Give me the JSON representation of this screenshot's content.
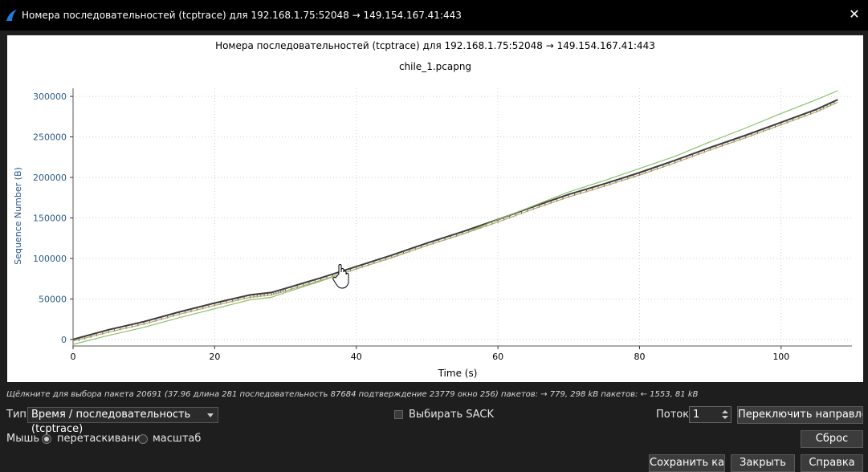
{
  "window": {
    "title": "Номера последовательностей (tcptrace) для 192.168.1.75:52048 → 149.154.167.41:443"
  },
  "chart_data": {
    "type": "line",
    "title": "Номера последовательностей (tcptrace) для 192.168.1.75:52048 → 149.154.167.41:443",
    "subtitle": "chile_1.pcapng",
    "xlabel": "Time (s)",
    "ylabel": "Sequence Number (B)",
    "xlim": [
      0,
      110
    ],
    "ylim": [
      -8000,
      310000
    ],
    "xticks": [
      0,
      20,
      40,
      60,
      80,
      100
    ],
    "yticks": [
      0,
      50000,
      100000,
      150000,
      200000,
      250000,
      300000
    ],
    "grid": true,
    "series": [
      {
        "color": "#3a3a3a",
        "x": [
          0,
          5,
          10,
          15,
          20,
          25,
          28,
          30,
          35,
          40,
          45,
          50,
          55,
          60,
          65,
          70,
          75,
          80,
          85,
          90,
          95,
          100,
          105,
          108
        ],
        "y": [
          0,
          12000,
          22000,
          34000,
          45000,
          55000,
          58000,
          63000,
          76000,
          90000,
          104000,
          119000,
          133000,
          148000,
          164000,
          179000,
          192000,
          206000,
          221000,
          237000,
          252000,
          268000,
          284000,
          296000
        ]
      },
      {
        "color": "#8cc06c",
        "x": [
          0,
          5,
          10,
          15,
          20,
          25,
          28,
          30,
          35,
          40,
          45,
          50,
          55,
          60,
          65,
          70,
          75,
          80,
          85,
          90,
          95,
          100,
          105,
          108
        ],
        "y": [
          -6000,
          5000,
          15000,
          27000,
          38000,
          49000,
          52000,
          58000,
          72000,
          87000,
          101000,
          116000,
          130000,
          148000,
          165000,
          182000,
          196000,
          211000,
          226000,
          244000,
          261000,
          279000,
          296000,
          307000
        ]
      },
      {
        "color": "#b8a46a",
        "x": [
          0,
          5,
          10,
          15,
          20,
          25,
          28,
          30,
          35,
          40,
          45,
          50,
          55,
          60,
          65,
          70,
          75,
          80,
          85,
          90,
          95,
          100,
          105,
          108
        ],
        "y": [
          -2000,
          9000,
          19000,
          31000,
          42000,
          52000,
          55000,
          60000,
          73000,
          87000,
          101000,
          116000,
          130000,
          145000,
          161000,
          176000,
          189000,
          203000,
          218000,
          234000,
          249000,
          265000,
          281000,
          293000
        ]
      }
    ]
  },
  "status": {
    "text": "Щёлкните для выбора пакета 20691 (37.96 длина 281 последовательность 87684 подтверждение 23779 окно 256) пакетов: → 779, 298 kB пакетов: ← 1553, 81 kB"
  },
  "controls": {
    "type_label": "Тип",
    "type_value": "Время / последовательность (tcptrace)",
    "sack_label": "Выбирать SACK",
    "stream_label": "Поток",
    "stream_value": "1",
    "switch_direction": "Переключить направление",
    "mouse_label": "Мышь",
    "radio_drag": "перетаскивание",
    "radio_zoom": "масштаб",
    "reset": "Сброс",
    "save_as": "Сохранить как...",
    "close": "Закрыть",
    "help": "Справка"
  }
}
